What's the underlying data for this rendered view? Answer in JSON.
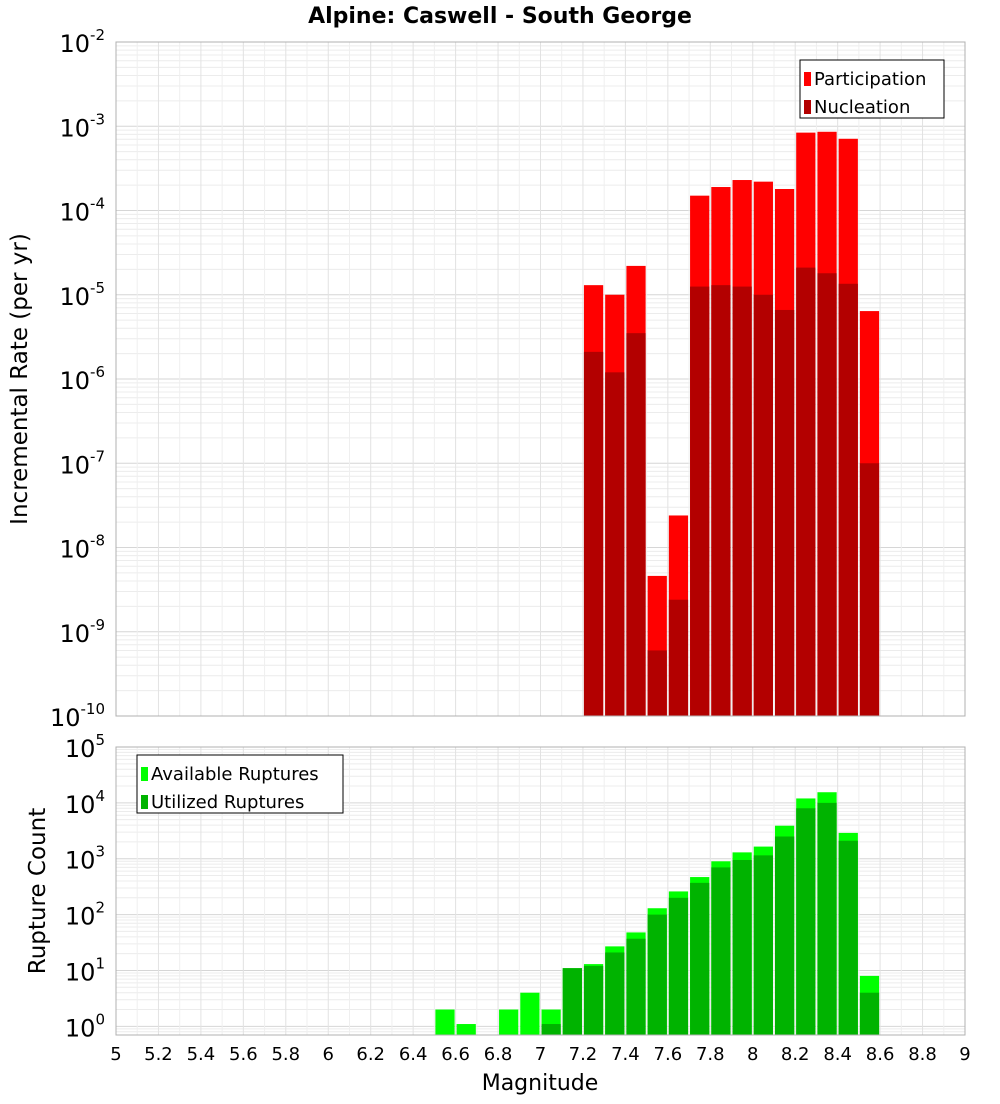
{
  "chart_data": [
    {
      "type": "bar",
      "title": "Alpine: Caswell - South George",
      "xlabel": "",
      "ylabel": "Incremental Rate (per yr)",
      "y_scale": "log",
      "ylim": [
        1e-10,
        0.01
      ],
      "xlim": [
        5,
        9
      ],
      "bin_width": 0.1,
      "grid": true,
      "legend_position": "top-right",
      "y_tick_exponents": [
        -10,
        -9,
        -8,
        -7,
        -6,
        -5,
        -4,
        -3,
        -2
      ],
      "x": [
        7.25,
        7.35,
        7.45,
        7.55,
        7.65,
        7.75,
        7.85,
        7.95,
        8.05,
        8.15,
        8.25,
        8.35,
        8.45,
        8.55
      ],
      "series": [
        {
          "name": "Participation",
          "color": "#ff0000",
          "values": [
            1.3e-05,
            1e-05,
            2.2e-05,
            4.6e-09,
            2.4e-08,
            0.00015,
            0.00019,
            0.00023,
            0.00022,
            0.00018,
            0.00084,
            0.00086,
            0.00071,
            6.4e-06
          ]
        },
        {
          "name": "Nucleation",
          "color": "#b30000",
          "values": [
            2.1e-06,
            1.2e-06,
            3.5e-06,
            6e-10,
            2.4e-09,
            1.25e-05,
            1.3e-05,
            1.25e-05,
            1e-05,
            6.6e-06,
            2.1e-05,
            1.8e-05,
            1.35e-05,
            1e-07
          ]
        }
      ]
    },
    {
      "type": "bar",
      "title": "",
      "xlabel": "Magnitude",
      "ylabel": "Rupture Count",
      "y_scale": "log",
      "ylim": [
        0.7,
        100000
      ],
      "xlim": [
        5,
        9
      ],
      "bin_width": 0.1,
      "grid": true,
      "legend_position": "top-left",
      "y_tick_exponents": [
        0,
        1,
        2,
        3,
        4,
        5
      ],
      "x_ticks": [
        "5",
        "5.2",
        "5.4",
        "5.6",
        "5.8",
        "6",
        "6.2",
        "6.4",
        "6.6",
        "6.8",
        "7",
        "7.2",
        "7.4",
        "7.6",
        "7.8",
        "8",
        "8.2",
        "8.4",
        "8.6",
        "8.8",
        "9"
      ],
      "x": [
        6.55,
        6.65,
        6.85,
        6.95,
        7.05,
        7.15,
        7.25,
        7.35,
        7.45,
        7.55,
        7.65,
        7.75,
        7.85,
        7.95,
        8.05,
        8.15,
        8.25,
        8.35,
        8.45,
        8.55
      ],
      "series": [
        {
          "name": "Available Ruptures",
          "color": "#00ff00",
          "values": [
            2,
            1.1,
            2,
            4,
            2,
            11,
            13,
            27,
            48,
            130,
            260,
            470,
            900,
            1300,
            1650,
            3900,
            12000,
            15500,
            2900,
            8
          ]
        },
        {
          "name": "Utilized Ruptures",
          "color": "#00b300",
          "values": [
            null,
            null,
            null,
            null,
            1.1,
            11,
            12,
            21,
            37,
            100,
            200,
            370,
            700,
            950,
            1150,
            2500,
            8000,
            10000,
            2100,
            4
          ]
        }
      ]
    }
  ]
}
